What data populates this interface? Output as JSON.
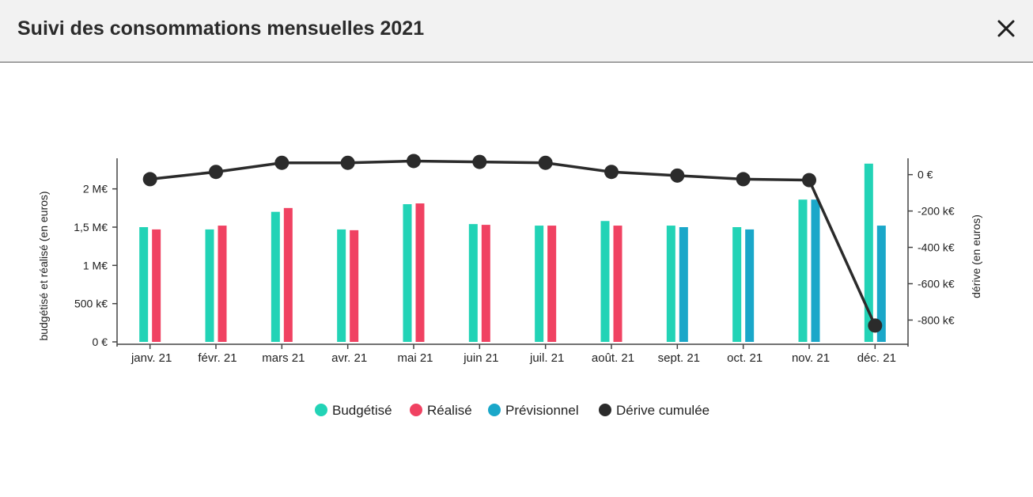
{
  "dialog": {
    "title": "Suivi des consommations mensuelles 2021",
    "close_icon": "close-icon"
  },
  "chart_data": {
    "type": "bar",
    "categories": [
      "janv. 21",
      "févr. 21",
      "mars 21",
      "avr. 21",
      "mai 21",
      "juin 21",
      "juil. 21",
      "août. 21",
      "sept. 21",
      "oct. 21",
      "nov. 21",
      "déc. 21"
    ],
    "series": [
      {
        "name": "Budgétisé",
        "color": "#22d3b6",
        "axis": "left",
        "values": [
          1500000,
          1470000,
          1700000,
          1470000,
          1800000,
          1540000,
          1520000,
          1580000,
          1520000,
          1500000,
          1860000,
          2330000
        ]
      },
      {
        "name": "Réalisé",
        "color": "#f04262",
        "axis": "left",
        "values": [
          1470000,
          1520000,
          1750000,
          1460000,
          1810000,
          1530000,
          1520000,
          1520000,
          null,
          null,
          null,
          null
        ]
      },
      {
        "name": "Prévisionnel",
        "color": "#1aa7c9",
        "axis": "left",
        "values": [
          null,
          null,
          null,
          null,
          null,
          null,
          null,
          null,
          1500000,
          1470000,
          1860000,
          1520000
        ]
      },
      {
        "name": "Dérive cumulée",
        "color": "#2b2b2b",
        "axis": "right",
        "type": "line",
        "values": [
          -25000,
          15000,
          65000,
          65000,
          75000,
          70000,
          65000,
          15000,
          -5000,
          -25000,
          -30000,
          -830000
        ]
      }
    ],
    "left_axis": {
      "label": "budgétisé et réalisé (en euros)",
      "ylim": [
        0,
        2400000
      ],
      "ticks": [
        0,
        500000,
        1000000,
        1500000,
        2000000
      ],
      "tick_labels": [
        "0 €",
        "500 k€",
        "1 M€",
        "1,5 M€",
        "2 M€"
      ]
    },
    "right_axis": {
      "label": "dérive (en euros)",
      "ylim": [
        -920000,
        90000
      ],
      "ticks": [
        0,
        -200000,
        -400000,
        -600000,
        -800000
      ],
      "tick_labels": [
        "0 €",
        "-200 k€",
        "-400 k€",
        "-600 k€",
        "-800 k€"
      ]
    },
    "legend": {
      "placement": "bottom-center",
      "entries": [
        {
          "label": "Budgétisé",
          "color": "#22d3b6"
        },
        {
          "label": "Réalisé",
          "color": "#f04262"
        },
        {
          "label": "Prévisionnel",
          "color": "#1aa7c9"
        },
        {
          "label": "Dérive cumulée",
          "color": "#2b2b2b"
        }
      ]
    },
    "grid": false
  }
}
